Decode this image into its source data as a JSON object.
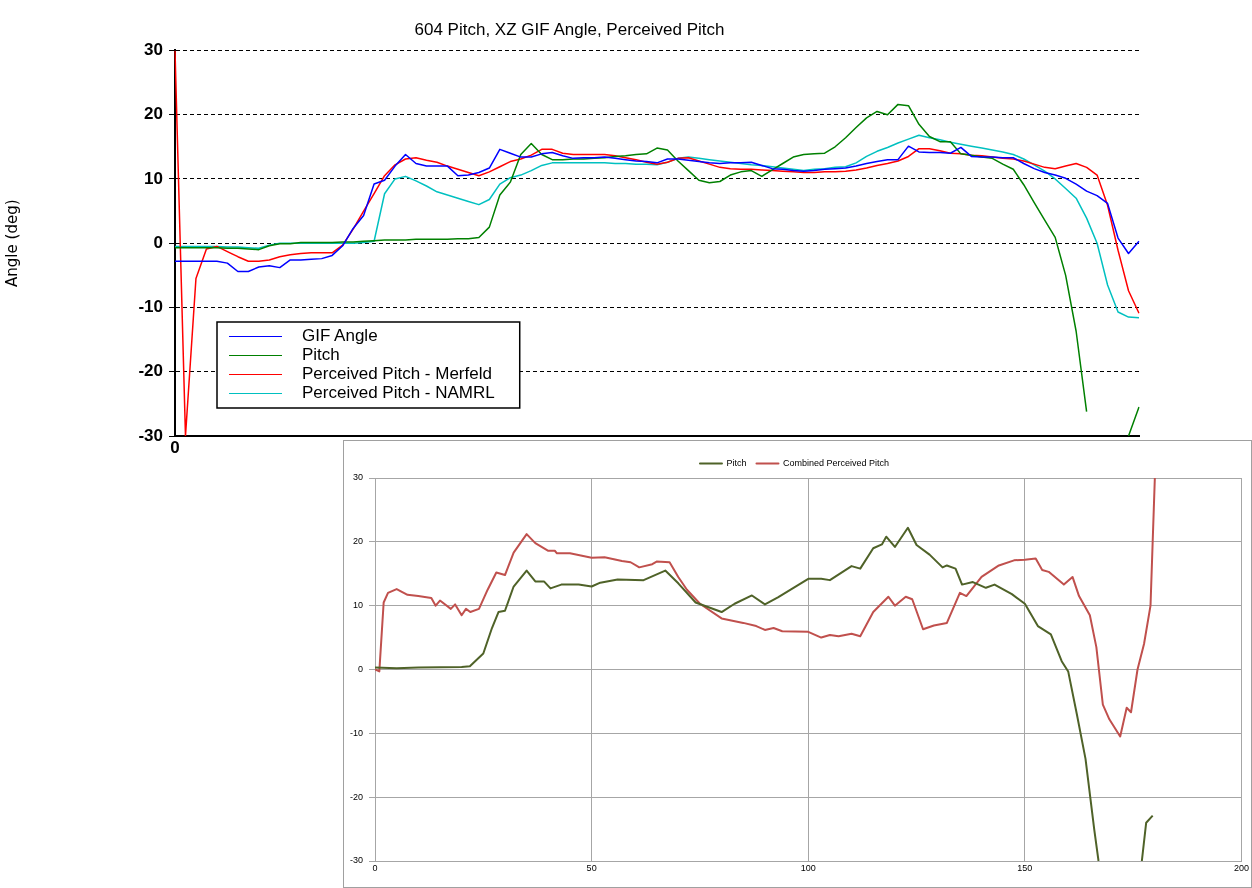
{
  "chart_data": [
    {
      "type": "line",
      "title": "604 Pitch, XZ GIF Angle, Perceived Pitch",
      "ylabel": "Angle (deg)",
      "categories": [
        "0",
        null,
        null,
        null,
        null,
        null,
        null,
        null,
        null,
        null,
        null,
        null,
        null,
        null,
        null,
        null,
        null,
        null,
        null,
        null,
        null,
        null,
        null,
        null,
        null,
        null,
        null,
        null,
        null,
        null,
        null,
        null,
        null,
        null,
        null,
        null,
        null,
        null,
        null,
        null,
        null,
        null,
        null,
        null,
        null,
        null,
        null,
        null,
        null,
        null,
        null,
        null,
        null,
        null,
        null,
        null,
        null,
        null,
        null,
        null,
        null,
        null,
        null,
        null,
        null,
        null,
        null,
        null,
        null,
        null,
        null,
        null,
        null,
        null,
        null,
        null,
        null,
        null,
        null,
        null,
        null,
        null,
        null,
        null,
        null,
        null,
        null,
        null,
        null,
        null,
        null,
        null,
        null
      ],
      "ylim": [
        -30,
        30
      ],
      "yticks": [
        -30,
        -20,
        -10,
        0,
        10,
        20,
        30
      ],
      "grid": "y",
      "legend": "bottom left",
      "series": [
        {
          "name": "GIF Angle",
          "color": "#0000ff",
          "values": [
            -2.8,
            -2.8,
            -2.8,
            -2.8,
            -2.8,
            -3.1,
            -4.4,
            -4.4,
            -3.7,
            -3.5,
            -3.8,
            -2.6,
            -2.6,
            -2.5,
            -2.4,
            -1.9,
            -0.4,
            2.3,
            4.3,
            9.2,
            9.8,
            12,
            13.8,
            12.4,
            12,
            12,
            12,
            10.5,
            10.6,
            11,
            11.7,
            14.6,
            14,
            13.4,
            13.4,
            13.9,
            14.1,
            13.6,
            13.2,
            13.3,
            13.3,
            13.4,
            13.2,
            13,
            12.8,
            12.7,
            12.5,
            13.1,
            13.1,
            12.9,
            12.7,
            12.5,
            12.4,
            12.5,
            12.5,
            12.6,
            12.1,
            11.6,
            11.5,
            11.3,
            11.2,
            11.3,
            11.5,
            11.6,
            11.7,
            12,
            12.4,
            12.7,
            13,
            13,
            15.1,
            14.2,
            14.1,
            14.1,
            14,
            14.9,
            13.5,
            13.4,
            13.4,
            13.3,
            13.3,
            12.4,
            11.6,
            11,
            10.6,
            10.1,
            9.2,
            8.1,
            7.4,
            6.2,
            0.8,
            -1.6,
            0.3
          ]
        },
        {
          "name": "Pitch",
          "color": "#008000",
          "values": [
            -0.7,
            -0.7,
            -0.7,
            -0.7,
            -0.7,
            -0.8,
            -0.8,
            -0.9,
            -1,
            -0.4,
            -0.1,
            -0.1,
            0.1,
            0.1,
            0.1,
            0.1,
            0.2,
            0.2,
            0.3,
            0.4,
            0.5,
            0.5,
            0.5,
            0.6,
            0.6,
            0.6,
            0.6,
            0.7,
            0.7,
            0.9,
            2.5,
            7.5,
            9.5,
            13.8,
            15.5,
            13.8,
            13,
            13,
            13.1,
            13.1,
            13.2,
            13.3,
            13.5,
            13.6,
            13.8,
            13.9,
            14.8,
            14.5,
            12.8,
            11.3,
            9.8,
            9.4,
            9.6,
            10.6,
            11.1,
            11.3,
            10.4,
            11.4,
            12.4,
            13.4,
            13.8,
            13.9,
            14,
            15,
            16.4,
            18,
            19.5,
            20.5,
            20,
            21.6,
            21.4,
            18.5,
            16.6,
            15.8,
            15.8,
            13.9,
            13.7,
            13.4,
            13.2,
            12.3,
            11.5,
            9.1,
            6.3,
            3.6,
            0.9,
            -5,
            -13.7,
            -26.2,
            null,
            null,
            null,
            -30,
            -25.5
          ]
        },
        {
          "name": "Perceived Pitch - Merfeld",
          "color": "#ff0000",
          "values": [
            30,
            -30,
            -5.5,
            -0.9,
            -0.5,
            -1.3,
            -2.1,
            -2.8,
            -2.8,
            -2.6,
            -2.1,
            -1.8,
            -1.6,
            -1.5,
            -1.5,
            -1.5,
            -0.3,
            2.2,
            5,
            7.7,
            10.5,
            12.2,
            13.1,
            13.3,
            12.9,
            12.6,
            12,
            11.5,
            11,
            10.5,
            11.1,
            11.9,
            12.7,
            13.1,
            13.7,
            14.6,
            14.6,
            14,
            13.8,
            13.8,
            13.8,
            13.8,
            13.6,
            13.3,
            13,
            12.6,
            12.3,
            12.6,
            13.2,
            13.3,
            12.8,
            12.3,
            11.8,
            11.6,
            11.5,
            11.5,
            11.4,
            11.3,
            11.2,
            11.1,
            11,
            11,
            11.1,
            11.1,
            11.2,
            11.4,
            11.7,
            12.1,
            12.4,
            12.8,
            13.5,
            14.7,
            14.7,
            14.4,
            14,
            13.9,
            13.7,
            13.6,
            13.4,
            13.2,
            13.1,
            12.8,
            12.3,
            11.8,
            11.6,
            12,
            12.4,
            11.8,
            10.6,
            5.9,
            -1.1,
            -7.4,
            -10.9
          ]
        },
        {
          "name": "Perceived Pitch - NAMRL",
          "color": "#00c0c0",
          "values": [
            -0.5,
            -0.5,
            -0.5,
            -0.5,
            -0.5,
            -0.6,
            -0.6,
            -0.7,
            -0.8,
            -0.3,
            0,
            0,
            0,
            0,
            0,
            0,
            0,
            0,
            0.1,
            0.3,
            7.7,
            10,
            10.4,
            9.7,
            8.9,
            8,
            7.5,
            7,
            6.5,
            6,
            6.8,
            9.2,
            10.2,
            10.6,
            11.3,
            12.1,
            12.5,
            12.5,
            12.5,
            12.5,
            12.5,
            12.5,
            12.4,
            12.4,
            12.3,
            12.3,
            12.2,
            12.6,
            13.2,
            13.4,
            13.2,
            13,
            12.8,
            12.6,
            12.4,
            12.2,
            12.1,
            11.9,
            11.7,
            11.5,
            11.3,
            11.5,
            11.6,
            11.8,
            11.9,
            12.5,
            13.5,
            14.3,
            14.9,
            15.6,
            16.2,
            16.8,
            16.4,
            16.1,
            15.7,
            15.4,
            15.1,
            14.8,
            14.5,
            14.2,
            13.8,
            13.1,
            12.2,
            11.2,
            10,
            8.5,
            7,
            3.9,
            0,
            -6.5,
            -10.7,
            -11.5,
            -11.6
          ]
        }
      ]
    },
    {
      "type": "line",
      "xlim": [
        0,
        200
      ],
      "xticks": [
        0,
        50,
        100,
        150,
        200
      ],
      "ylim": [
        -30,
        30
      ],
      "yticks": [
        -30,
        -20,
        -10,
        0,
        10,
        20,
        30
      ],
      "grid": true,
      "legend": "top",
      "series": [
        {
          "name": "Pitch",
          "color": "#4f6228",
          "x": [
            0,
            5,
            10,
            20,
            21.9,
            25,
            27,
            28.5,
            30,
            32,
            35,
            37,
            39,
            40.5,
            43,
            47,
            50,
            52,
            56,
            62,
            67,
            70,
            74,
            80,
            83,
            87,
            90,
            93,
            100,
            103,
            105,
            110,
            112,
            115,
            117,
            118,
            120,
            123,
            125,
            128,
            131,
            132,
            134,
            135.5,
            138,
            141,
            143,
            147,
            150,
            153,
            156,
            158.5,
            160,
            162,
            164,
            166,
            167,
            172,
            177,
            178,
            179.5
          ],
          "values": [
            0.3,
            0.2,
            0.3,
            0.4,
            0.5,
            2.5,
            6.5,
            9,
            9.2,
            13,
            15.5,
            13.8,
            13.8,
            12.7,
            13.3,
            13.3,
            13,
            13.6,
            14.1,
            14,
            15.5,
            13.5,
            10.5,
            9,
            10.3,
            11.6,
            10.2,
            11.3,
            14.2,
            14.2,
            14,
            16.2,
            15.8,
            19,
            19.6,
            20.8,
            19.2,
            22.2,
            19.5,
            18,
            16,
            16.3,
            15.8,
            13.3,
            13.7,
            12.8,
            13.3,
            11.8,
            10.3,
            6.8,
            5.5,
            1.3,
            -0.3,
            -7,
            -14,
            -25,
            -30,
            null,
            -30,
            -24,
            -22.9
          ]
        },
        {
          "name": "Combined Perceived Pitch",
          "color": "#c0504d",
          "x": [
            0,
            1,
            2,
            3,
            5,
            7.5,
            10,
            13,
            14,
            15,
            17.5,
            18.5,
            20,
            21,
            22,
            24,
            26,
            28,
            30,
            32,
            35,
            37,
            40,
            41.5,
            42,
            45,
            50,
            53,
            57,
            59,
            61,
            64,
            65,
            68,
            70,
            72,
            75,
            80,
            85,
            88,
            90,
            92,
            94,
            100,
            103,
            105,
            107,
            110,
            112,
            115,
            118.5,
            120,
            122.5,
            124,
            126.5,
            129,
            132,
            135,
            136.5,
            140,
            144,
            147.5,
            150,
            152.5,
            154,
            155.5,
            159,
            161,
            162.5,
            165,
            166.5,
            168,
            169.5,
            172,
            173.5,
            174.5,
            176,
            177.5,
            179,
            179.5,
            180
          ],
          "values": [
            0,
            -0.3,
            10.5,
            12,
            12.6,
            11.7,
            11.5,
            11.2,
            10,
            10.8,
            9.5,
            10.2,
            8.5,
            9.5,
            9,
            9.5,
            12.5,
            15.2,
            14.8,
            18.3,
            21.2,
            19.8,
            18.6,
            18.6,
            18.2,
            18.2,
            17.5,
            17.6,
            17,
            16.8,
            16,
            16.5,
            16.9,
            16.8,
            14.5,
            12.5,
            10.3,
            8,
            7.3,
            6.8,
            6.2,
            6.5,
            6,
            5.9,
            5,
            5.4,
            5.2,
            5.6,
            5.2,
            9,
            11.4,
            10,
            11.4,
            11,
            6.3,
            6.9,
            7.3,
            12,
            11.5,
            14.5,
            16.3,
            17.1,
            17.2,
            17.4,
            15.6,
            15.3,
            13.3,
            14.5,
            11.5,
            8.5,
            3.5,
            -5.5,
            -7.8,
            -10.5,
            -6,
            -6.7,
            0,
            4,
            10,
            20,
            30
          ]
        }
      ]
    }
  ]
}
